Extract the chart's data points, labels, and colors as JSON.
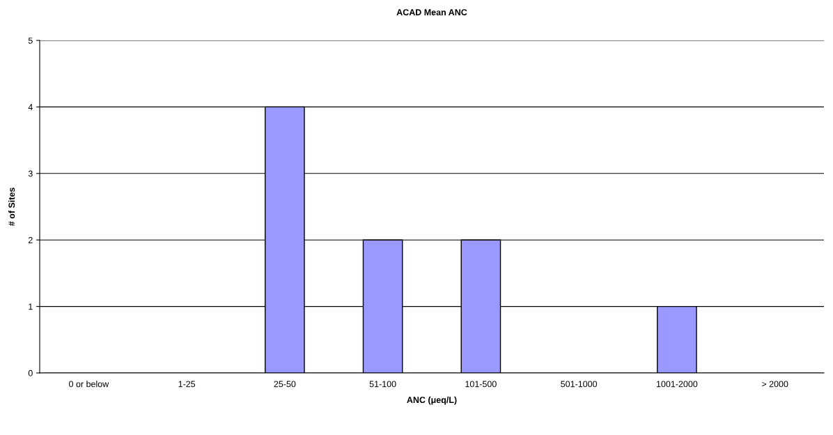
{
  "chart_data": {
    "type": "bar",
    "title": "ACAD Mean ANC",
    "xlabel": "ANC (μeq/L)",
    "ylabel": "# of Sites",
    "categories": [
      "0 or below",
      "1-25",
      "25-50",
      "51-100",
      "101-500",
      "501-1000",
      "1001-2000",
      "> 2000"
    ],
    "values": [
      0,
      0,
      4,
      2,
      2,
      0,
      1,
      0
    ],
    "color": "#9999ff",
    "ylim": [
      0,
      5
    ],
    "yticks": [
      0,
      1,
      2,
      3,
      4,
      5
    ],
    "grid": "y"
  }
}
